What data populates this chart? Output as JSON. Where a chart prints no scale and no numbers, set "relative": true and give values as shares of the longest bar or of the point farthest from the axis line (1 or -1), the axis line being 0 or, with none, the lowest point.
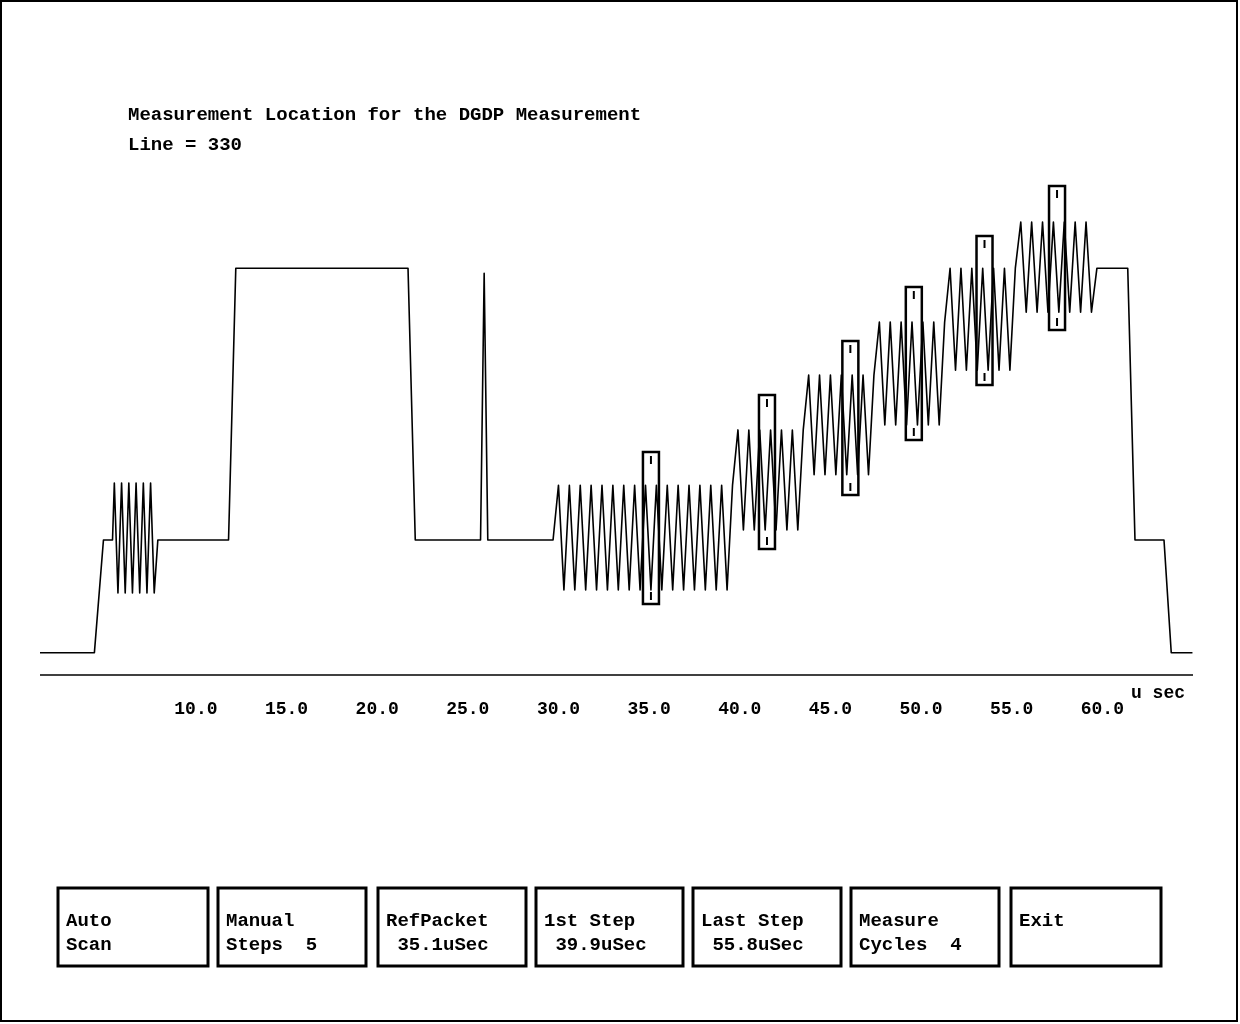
{
  "chart_data": {
    "type": "line",
    "title": "Measurement Location for the DGDP Measurement",
    "subtitle": "Line = 330",
    "xlabel": "u sec",
    "relative": true,
    "tick_labels": "x",
    "marker": "none",
    "line_style": "solid",
    "xlim": [
      1.4,
      65
    ],
    "xticks": [
      {
        "value": 10,
        "label": "10.0"
      },
      {
        "value": 15,
        "label": "15.0"
      },
      {
        "value": 20,
        "label": "20.0"
      },
      {
        "value": 25,
        "label": "25.0"
      },
      {
        "value": 30,
        "label": "30.0"
      },
      {
        "value": 35,
        "label": "35.0"
      },
      {
        "value": 40,
        "label": "40.0"
      },
      {
        "value": 45,
        "label": "45.0"
      },
      {
        "value": 50,
        "label": "50.0"
      },
      {
        "value": 55,
        "label": "55.0"
      },
      {
        "value": 60,
        "label": "60.0"
      }
    ],
    "annotations": [
      "Auto\nScan",
      "Manual\nSteps  5",
      "RefPacket\n 35.1uSec",
      "1st Step\n 39.9uSec",
      "Last Step\n 55.8uSec",
      "Measure\nCycles  4",
      "Exit"
    ],
    "series": [
      {
        "color": "#000000",
        "x": [
          1.4,
          4.4,
          4.9,
          5.4,
          5.5,
          5.7,
          5.9,
          6.1,
          6.3,
          6.5,
          6.7,
          6.9,
          7.1,
          7.3,
          7.5,
          7.7,
          7.9,
          11.8,
          12.2,
          21.7,
          22.1,
          25.7,
          25.9,
          26.1,
          29.7,
          30.0,
          30.3,
          30.6,
          30.9,
          31.2,
          31.5,
          31.8,
          32.1,
          32.4,
          32.7,
          33.0,
          33.3,
          33.6,
          33.9,
          34.2,
          34.5,
          34.8,
          35.1,
          35.4,
          35.7,
          36.0,
          36.3,
          36.6,
          36.9,
          37.2,
          37.5,
          37.8,
          38.1,
          38.4,
          38.7,
          39.0,
          39.3,
          39.6,
          39.9,
          40.2,
          40.5,
          40.8,
          41.1,
          41.4,
          41.7,
          42.0,
          42.3,
          42.6,
          42.9,
          43.2,
          43.5,
          43.8,
          44.1,
          44.4,
          44.7,
          45.0,
          45.3,
          45.6,
          45.9,
          46.2,
          46.5,
          46.8,
          47.1,
          47.4,
          47.7,
          48.0,
          48.3,
          48.6,
          48.9,
          49.2,
          49.5,
          49.8,
          50.1,
          50.4,
          50.7,
          51.0,
          51.3,
          51.6,
          51.9,
          52.2,
          52.5,
          52.8,
          53.1,
          53.4,
          53.7,
          54.0,
          54.3,
          54.6,
          54.9,
          55.2,
          55.5,
          55.8,
          56.1,
          56.4,
          56.7,
          57.0,
          57.3,
          57.6,
          57.9,
          58.2,
          58.5,
          58.8,
          59.1,
          59.4,
          59.7,
          61.4,
          61.8,
          63.4,
          63.8,
          64.97
        ],
        "values": [
          0.049,
          0.049,
          0.298,
          0.298,
          0.424,
          0.181,
          0.424,
          0.181,
          0.424,
          0.181,
          0.424,
          0.181,
          0.424,
          0.181,
          0.424,
          0.181,
          0.298,
          0.298,
          0.898,
          0.898,
          0.298,
          0.298,
          0.887,
          0.298,
          0.298,
          0.419,
          0.188,
          0.419,
          0.188,
          0.419,
          0.188,
          0.419,
          0.188,
          0.419,
          0.188,
          0.419,
          0.188,
          0.419,
          0.188,
          0.419,
          0.188,
          0.419,
          0.188,
          0.419,
          0.188,
          0.419,
          0.188,
          0.419,
          0.188,
          0.419,
          0.188,
          0.419,
          0.188,
          0.419,
          0.188,
          0.419,
          0.188,
          0.419,
          0.541,
          0.32,
          0.541,
          0.32,
          0.541,
          0.32,
          0.541,
          0.32,
          0.541,
          0.32,
          0.541,
          0.32,
          0.541,
          0.662,
          0.442,
          0.662,
          0.442,
          0.662,
          0.442,
          0.662,
          0.442,
          0.662,
          0.442,
          0.662,
          0.442,
          0.662,
          0.779,
          0.552,
          0.779,
          0.552,
          0.779,
          0.552,
          0.779,
          0.552,
          0.779,
          0.552,
          0.779,
          0.552,
          0.779,
          0.898,
          0.673,
          0.898,
          0.673,
          0.898,
          0.673,
          0.898,
          0.673,
          0.898,
          0.673,
          0.898,
          0.673,
          0.898,
          1.0,
          0.801,
          1.0,
          0.801,
          1.0,
          0.801,
          1.0,
          0.801,
          1.0,
          0.801,
          1.0,
          0.801,
          1.0,
          0.801,
          0.898,
          0.898,
          0.298,
          0.298,
          0.049,
          0.049
        ]
      }
    ]
  }
}
